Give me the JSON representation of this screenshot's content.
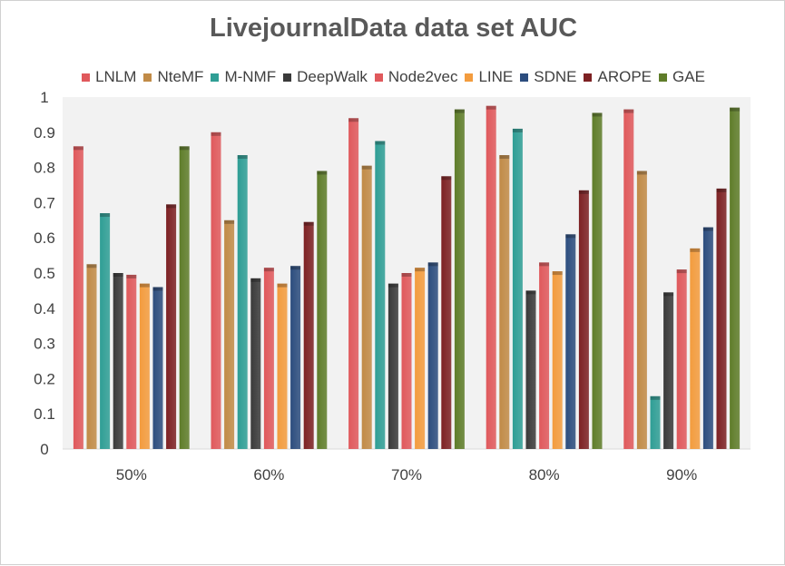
{
  "chart_data": {
    "type": "bar",
    "title": "LivejournalData data set AUC",
    "categories": [
      "50%",
      "60%",
      "70%",
      "80%",
      "90%"
    ],
    "y_ticks": [
      "0",
      "0.1",
      "0.2",
      "0.3",
      "0.4",
      "0.5",
      "0.6",
      "0.7",
      "0.8",
      "0.9",
      "1"
    ],
    "ylim": [
      0,
      1
    ],
    "legend_position": "top",
    "series": [
      {
        "name": "LNLM",
        "color": "#e0595c",
        "values": [
          0.86,
          0.9,
          0.94,
          0.975,
          0.965
        ]
      },
      {
        "name": "NteMF",
        "color": "#c18b47",
        "values": [
          0.525,
          0.65,
          0.805,
          0.835,
          0.79
        ]
      },
      {
        "name": "M-NMF",
        "color": "#2f9e95",
        "values": [
          0.67,
          0.835,
          0.875,
          0.91,
          0.15
        ]
      },
      {
        "name": "DeepWalk",
        "color": "#3a3a3a",
        "values": [
          0.5,
          0.485,
          0.47,
          0.45,
          0.445
        ]
      },
      {
        "name": "Node2vec",
        "color": "#e0595c",
        "values": [
          0.495,
          0.515,
          0.5,
          0.53,
          0.51
        ]
      },
      {
        "name": "LINE",
        "color": "#f39c3e",
        "values": [
          0.47,
          0.47,
          0.515,
          0.505,
          0.57
        ]
      },
      {
        "name": "SDNE",
        "color": "#2c4d7e",
        "values": [
          0.46,
          0.52,
          0.53,
          0.61,
          0.63
        ]
      },
      {
        "name": "AROPE",
        "color": "#7d2123",
        "values": [
          0.695,
          0.645,
          0.775,
          0.735,
          0.74
        ]
      },
      {
        "name": "GAE",
        "color": "#5f7d2a",
        "values": [
          0.86,
          0.79,
          0.965,
          0.955,
          0.97
        ]
      }
    ]
  }
}
